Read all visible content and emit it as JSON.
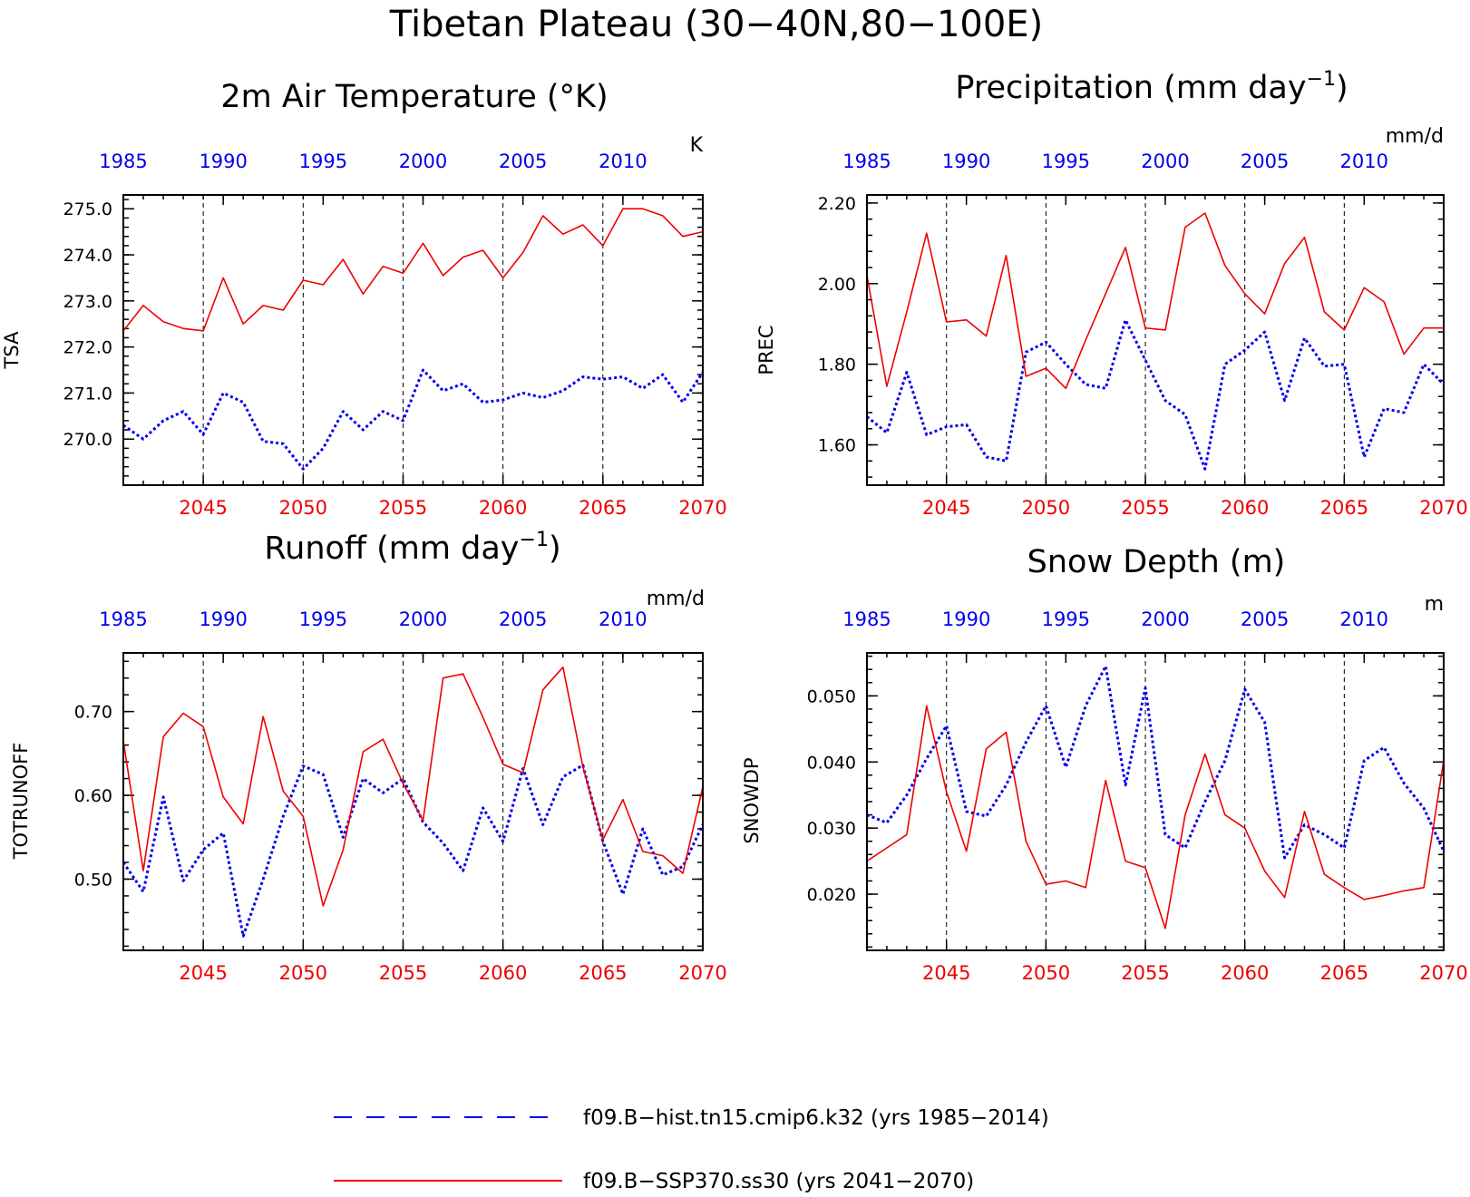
{
  "suptitle": "Tibetan Plateau (30−40N,80−100E)",
  "colors": {
    "hist": "#0000ee",
    "future": "#ee0000",
    "axis": "#000000",
    "grid": "#000000"
  },
  "legend": [
    {
      "label": "f09.B−hist.tn15.cmip6.k32 (yrs 1985−2014)",
      "color": "#0000ee",
      "style": "dashed"
    },
    {
      "label": "f09.B−SSP370.ss30 (yrs 2041−2070)",
      "color": "#ee0000",
      "style": "solid"
    }
  ],
  "chart_data": [
    {
      "type": "line",
      "title": "2m Air Temperature (°K)",
      "ylabel": "TSA",
      "units": "K",
      "top_xticks": [
        "1985",
        "1990",
        "1995",
        "2000",
        "2005",
        "2010"
      ],
      "bottom_xticks": [
        "2045",
        "2050",
        "2055",
        "2060",
        "2065",
        "2070"
      ],
      "yticks": [
        "270.0",
        "271.0",
        "272.0",
        "273.0",
        "274.0",
        "275.0"
      ],
      "ylim": [
        269.0,
        275.3
      ],
      "series": [
        {
          "name": "f09.B−hist.tn15.cmip6.k32 (yrs 1985−2014)",
          "x": [
            1985,
            1986,
            1987,
            1988,
            1989,
            1990,
            1991,
            1992,
            1993,
            1994,
            1995,
            1996,
            1997,
            1998,
            1999,
            2000,
            2001,
            2002,
            2003,
            2004,
            2005,
            2006,
            2007,
            2008,
            2009,
            2010,
            2011,
            2012,
            2013,
            2014
          ],
          "values": [
            270.3,
            270.0,
            270.4,
            270.6,
            270.1,
            271.0,
            270.8,
            269.95,
            269.9,
            269.35,
            269.8,
            270.6,
            270.2,
            270.6,
            270.4,
            271.5,
            271.05,
            271.2,
            270.8,
            270.85,
            271.0,
            270.9,
            271.05,
            271.35,
            271.3,
            271.35,
            271.1,
            271.4,
            270.8,
            271.45
          ]
        },
        {
          "name": "f09.B−SSP370.ss30 (yrs 2041−2070)",
          "x": [
            2041,
            2042,
            2043,
            2044,
            2045,
            2046,
            2047,
            2048,
            2049,
            2050,
            2051,
            2052,
            2053,
            2054,
            2055,
            2056,
            2057,
            2058,
            2059,
            2060,
            2061,
            2062,
            2063,
            2064,
            2065,
            2066,
            2067,
            2068,
            2069,
            2070
          ],
          "values": [
            272.35,
            272.9,
            272.55,
            272.4,
            272.35,
            273.5,
            272.5,
            272.9,
            272.8,
            273.45,
            273.35,
            273.9,
            273.15,
            273.75,
            273.6,
            274.25,
            273.55,
            273.95,
            274.1,
            273.5,
            274.05,
            274.85,
            274.45,
            274.65,
            274.2,
            275.0,
            275.0,
            274.85,
            274.4,
            274.5
          ]
        }
      ]
    },
    {
      "type": "line",
      "title": "Precipitation (mm day",
      "title_sup": "−1",
      "title_end": ")",
      "ylabel": "PREC",
      "units": "mm/d",
      "top_xticks": [
        "1985",
        "1990",
        "1995",
        "2000",
        "2005",
        "2010"
      ],
      "bottom_xticks": [
        "2045",
        "2050",
        "2055",
        "2060",
        "2065",
        "2070"
      ],
      "yticks": [
        "1.60",
        "1.80",
        "2.00",
        "2.20"
      ],
      "ylim": [
        1.5,
        2.22
      ],
      "series": [
        {
          "name": "f09.B−hist.tn15.cmip6.k32 (yrs 1985−2014)",
          "x": [
            1985,
            1986,
            1987,
            1988,
            1989,
            1990,
            1991,
            1992,
            1993,
            1994,
            1995,
            1996,
            1997,
            1998,
            1999,
            2000,
            2001,
            2002,
            2003,
            2004,
            2005,
            2006,
            2007,
            2008,
            2009,
            2010,
            2011,
            2012,
            2013,
            2014
          ],
          "values": [
            1.67,
            1.63,
            1.78,
            1.625,
            1.645,
            1.65,
            1.57,
            1.56,
            1.83,
            1.855,
            1.8,
            1.75,
            1.74,
            1.91,
            1.81,
            1.71,
            1.675,
            1.54,
            1.8,
            1.835,
            1.88,
            1.71,
            1.865,
            1.795,
            1.8,
            1.57,
            1.69,
            1.68,
            1.8,
            1.75
          ]
        },
        {
          "name": "f09.B−SSP370.ss30 (yrs 2041−2070)",
          "x": [
            2041,
            2042,
            2043,
            2044,
            2045,
            2046,
            2047,
            2048,
            2049,
            2050,
            2051,
            2052,
            2053,
            2054,
            2055,
            2056,
            2057,
            2058,
            2059,
            2060,
            2061,
            2062,
            2063,
            2064,
            2065,
            2066,
            2067,
            2068,
            2069,
            2070
          ],
          "values": [
            2.02,
            1.745,
            1.93,
            2.125,
            1.905,
            1.91,
            1.87,
            2.07,
            1.77,
            1.79,
            1.74,
            1.86,
            1.975,
            2.09,
            1.89,
            1.885,
            2.14,
            2.175,
            2.045,
            1.975,
            1.925,
            2.05,
            2.115,
            1.93,
            1.885,
            1.99,
            1.955,
            1.825,
            1.89,
            1.89
          ]
        }
      ]
    },
    {
      "type": "line",
      "title": "Runoff (mm day",
      "title_sup": "−1",
      "title_end": ")",
      "ylabel": "TOTRUNOFF",
      "units": "mm/d",
      "top_xticks": [
        "1985",
        "1990",
        "1995",
        "2000",
        "2005",
        "2010"
      ],
      "bottom_xticks": [
        "2045",
        "2050",
        "2055",
        "2060",
        "2065",
        "2070"
      ],
      "yticks": [
        "0.50",
        "0.60",
        "0.70"
      ],
      "ylim": [
        0.415,
        0.77
      ],
      "series": [
        {
          "name": "f09.B−hist.tn15.cmip6.k32 (yrs 1985−2014)",
          "x": [
            1985,
            1986,
            1987,
            1988,
            1989,
            1990,
            1991,
            1992,
            1993,
            1994,
            1995,
            1996,
            1997,
            1998,
            1999,
            2000,
            2001,
            2002,
            2003,
            2004,
            2005,
            2006,
            2007,
            2008,
            2009,
            2010,
            2011,
            2012,
            2013,
            2014
          ],
          "values": [
            0.52,
            0.485,
            0.598,
            0.498,
            0.535,
            0.555,
            0.432,
            0.5,
            0.575,
            0.635,
            0.625,
            0.55,
            0.62,
            0.603,
            0.62,
            0.568,
            0.543,
            0.51,
            0.585,
            0.545,
            0.632,
            0.565,
            0.622,
            0.636,
            0.545,
            0.482,
            0.56,
            0.505,
            0.515,
            0.565
          ]
        },
        {
          "name": "f09.B−SSP370.ss30 (yrs 2041−2070)",
          "x": [
            2041,
            2042,
            2043,
            2044,
            2045,
            2046,
            2047,
            2048,
            2049,
            2050,
            2051,
            2052,
            2053,
            2054,
            2055,
            2056,
            2057,
            2058,
            2059,
            2060,
            2061,
            2062,
            2063,
            2064,
            2065,
            2066,
            2067,
            2068,
            2069,
            2070
          ],
          "values": [
            0.665,
            0.51,
            0.67,
            0.698,
            0.682,
            0.598,
            0.566,
            0.694,
            0.605,
            0.575,
            0.468,
            0.535,
            0.652,
            0.667,
            0.614,
            0.57,
            0.74,
            0.745,
            0.693,
            0.637,
            0.627,
            0.726,
            0.753,
            0.634,
            0.547,
            0.595,
            0.533,
            0.528,
            0.507,
            0.61
          ]
        }
      ]
    },
    {
      "type": "line",
      "title": "Snow Depth (m)",
      "ylabel": "SNOWDP",
      "units": "m",
      "top_xticks": [
        "1985",
        "1990",
        "1995",
        "2000",
        "2005",
        "2010"
      ],
      "bottom_xticks": [
        "2045",
        "2050",
        "2055",
        "2060",
        "2065",
        "2070"
      ],
      "yticks": [
        "0.020",
        "0.030",
        "0.040",
        "0.050"
      ],
      "ylim": [
        0.0115,
        0.0565
      ],
      "series": [
        {
          "name": "f09.B−hist.tn15.cmip6.k32 (yrs 1985−2014)",
          "x": [
            1985,
            1986,
            1987,
            1988,
            1989,
            1990,
            1991,
            1992,
            1993,
            1994,
            1995,
            1996,
            1997,
            1998,
            1999,
            2000,
            2001,
            2002,
            2003,
            2004,
            2005,
            2006,
            2007,
            2008,
            2009,
            2010,
            2011,
            2012,
            2013,
            2014
          ],
          "values": [
            0.032,
            0.0308,
            0.035,
            0.0405,
            0.0455,
            0.0325,
            0.0318,
            0.0365,
            0.043,
            0.0485,
            0.0392,
            0.0485,
            0.0545,
            0.0365,
            0.0512,
            0.029,
            0.027,
            0.034,
            0.0402,
            0.051,
            0.046,
            0.0255,
            0.0305,
            0.029,
            0.027,
            0.0402,
            0.0422,
            0.0368,
            0.033,
            0.0265
          ]
        },
        {
          "name": "f09.B−SSP370.ss30 (yrs 2041−2070)",
          "x": [
            2041,
            2042,
            2043,
            2044,
            2045,
            2046,
            2047,
            2048,
            2049,
            2050,
            2051,
            2052,
            2053,
            2054,
            2055,
            2056,
            2057,
            2058,
            2059,
            2060,
            2061,
            2062,
            2063,
            2064,
            2065,
            2066,
            2067,
            2068,
            2069,
            2070
          ],
          "values": [
            0.025,
            0.027,
            0.029,
            0.0485,
            0.0355,
            0.0265,
            0.042,
            0.0445,
            0.028,
            0.0215,
            0.022,
            0.021,
            0.0372,
            0.025,
            0.024,
            0.0148,
            0.032,
            0.0412,
            0.032,
            0.03,
            0.0235,
            0.0195,
            0.0325,
            0.023,
            0.021,
            0.0192,
            0.0198,
            0.0205,
            0.021,
            0.0402
          ]
        }
      ]
    }
  ]
}
